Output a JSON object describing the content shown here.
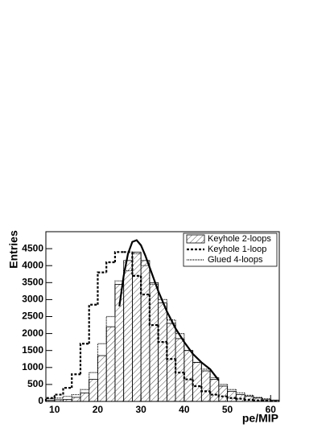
{
  "chart_data": {
    "type": "step-histogram",
    "xlabel": "pe/MIP",
    "ylabel": "Entries",
    "bins": [
      8,
      10,
      12,
      14,
      16,
      18,
      20,
      22,
      24,
      26,
      28,
      30,
      32,
      34,
      36,
      38,
      40,
      42,
      44,
      46,
      48,
      50,
      52,
      54,
      56,
      58,
      60,
      62
    ],
    "series": [
      {
        "name": "Keyhole 2-loops",
        "color": "#000000",
        "style": "hatch",
        "values": [
          30,
          50,
          60,
          120,
          250,
          650,
          1350,
          2200,
          3450,
          4150,
          4400,
          4150,
          3500,
          2900,
          2300,
          1850,
          1500,
          1150,
          900,
          650,
          450,
          300,
          200,
          150,
          100,
          50,
          30
        ]
      },
      {
        "name": "Keyhole 1-loop",
        "color": "#000000",
        "style": "dotted",
        "values": [
          100,
          200,
          400,
          800,
          1700,
          2850,
          3800,
          4100,
          4400,
          4400,
          3700,
          3150,
          2250,
          1750,
          1250,
          850,
          650,
          450,
          300,
          200,
          150,
          100,
          80,
          50,
          30,
          20,
          10
        ]
      },
      {
        "name": "Glued 4-loops",
        "color": "#000000",
        "style": "fine-dotted",
        "values": [
          80,
          100,
          150,
          200,
          350,
          850,
          1700,
          2500,
          3550,
          3850,
          4350,
          4000,
          3450,
          3000,
          2400,
          2000,
          1500,
          1150,
          950,
          700,
          500,
          350,
          250,
          180,
          120,
          80,
          40
        ]
      }
    ],
    "fit": {
      "color": "#000000",
      "x": [
        25,
        26,
        27,
        28,
        29,
        30,
        31,
        32,
        34,
        36,
        38,
        40,
        42,
        44,
        46,
        48
      ],
      "values": [
        2800,
        3700,
        4350,
        4700,
        4750,
        4600,
        4300,
        3950,
        3250,
        2650,
        2150,
        1750,
        1400,
        1150,
        950,
        620
      ]
    },
    "xlim": [
      8,
      62
    ],
    "ylim": [
      0,
      5000
    ],
    "xticks": [
      10,
      20,
      30,
      40,
      50,
      60
    ],
    "yticks": [
      0,
      500,
      1000,
      1500,
      2000,
      2500,
      3000,
      3500,
      4000,
      4500
    ],
    "legend": "upper-right"
  }
}
